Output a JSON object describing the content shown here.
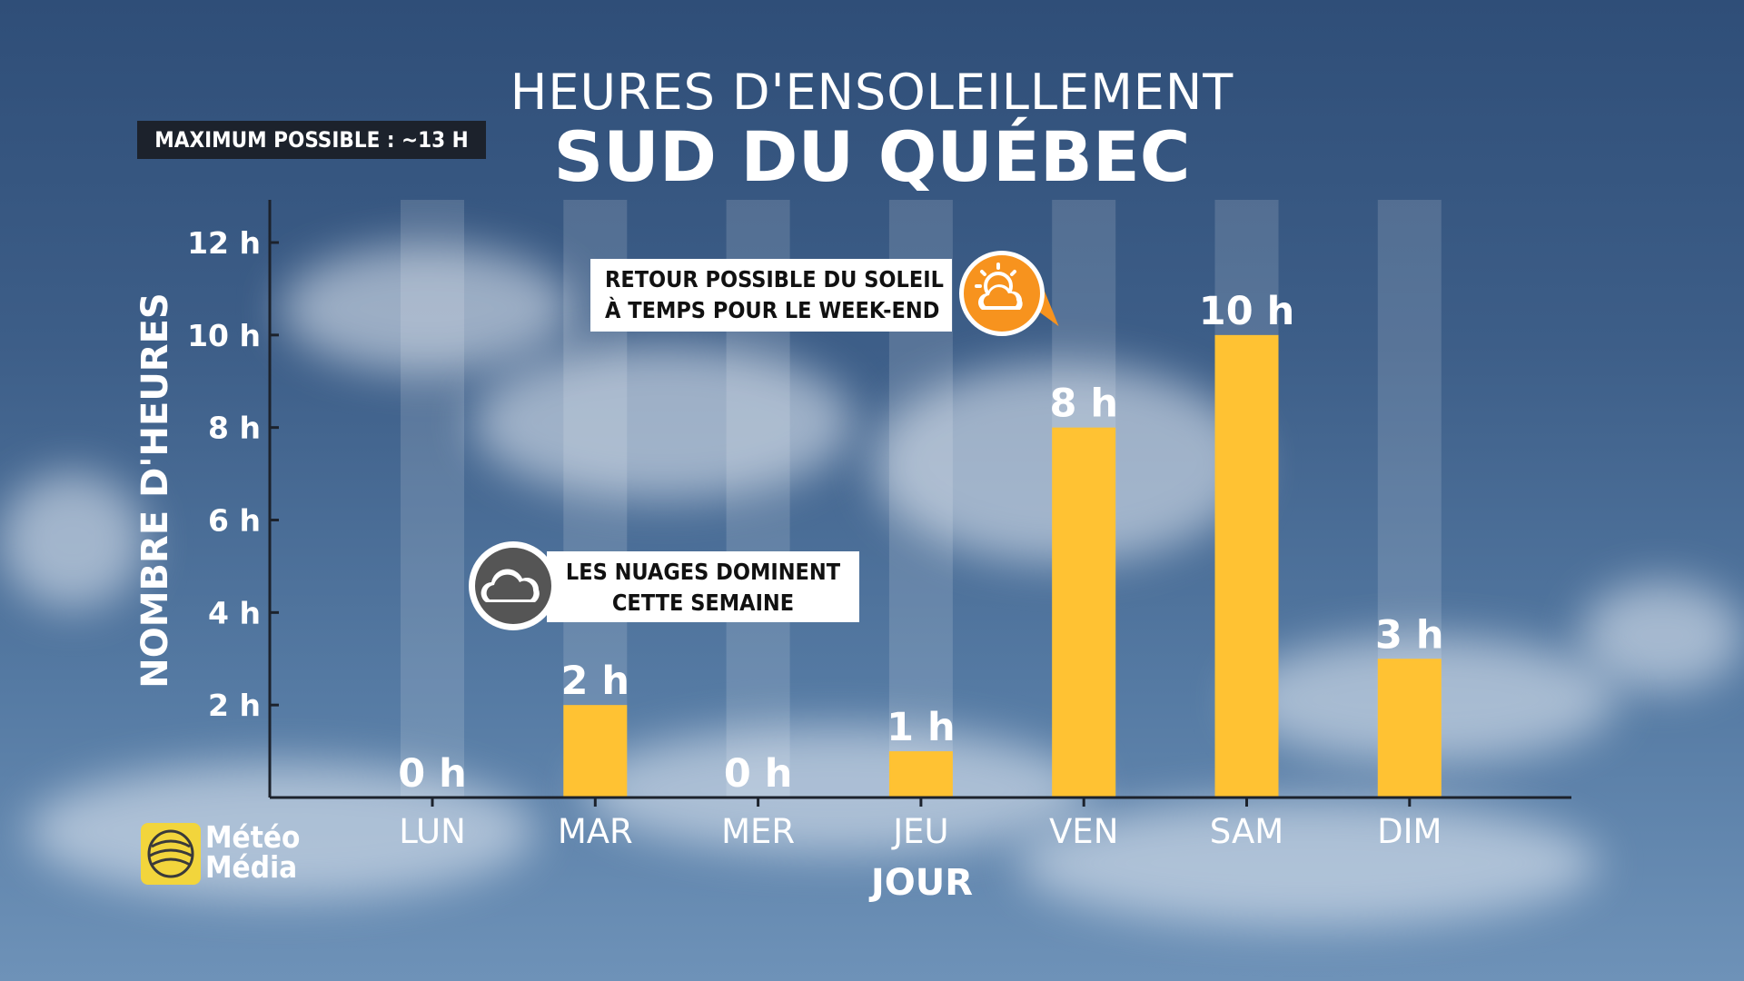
{
  "header": {
    "title_line1": "HEURES D'ENSOLEILLEMENT",
    "title_line2": "SUD DU QUÉBEC"
  },
  "max_badge": "MAXIMUM POSSIBLE : ~13 H",
  "callouts": {
    "sun": {
      "line1": "RETOUR POSSIBLE DU SOLEIL",
      "line2": "À TEMPS POUR LE WEEK-END",
      "icon": "sun-behind-cloud-icon"
    },
    "cloud": {
      "line1": "LES NUAGES DOMINENT",
      "line2": "CETTE SEMAINE",
      "icon": "cloud-icon"
    }
  },
  "logo": {
    "line1": "Météo",
    "line2": "Média"
  },
  "colors": {
    "bar": "#ffc233",
    "track": "rgba(255,255,255,0.14)",
    "axis": "#1c222c",
    "sun_badge": "#f7931e"
  },
  "chart_data": {
    "type": "bar",
    "title": "HEURES D'ENSOLEILLEMENT",
    "subtitle": "SUD DU QUÉBEC",
    "xlabel": "JOUR",
    "ylabel": "NOMBRE D'HEURES",
    "categories": [
      "LUN",
      "MAR",
      "MER",
      "JEU",
      "VEN",
      "SAM",
      "DIM"
    ],
    "values": [
      0,
      2,
      0,
      1,
      8,
      10,
      3
    ],
    "value_labels": [
      "0 h",
      "2 h",
      "0 h",
      "1 h",
      "8 h",
      "10 h",
      "3 h"
    ],
    "y_ticks": [
      2,
      4,
      6,
      8,
      10,
      12
    ],
    "y_tick_labels": [
      "2 h",
      "4 h",
      "6 h",
      "8 h",
      "10 h",
      "12 h"
    ],
    "ylim": [
      0,
      13
    ],
    "grid": false,
    "legend": "none"
  }
}
